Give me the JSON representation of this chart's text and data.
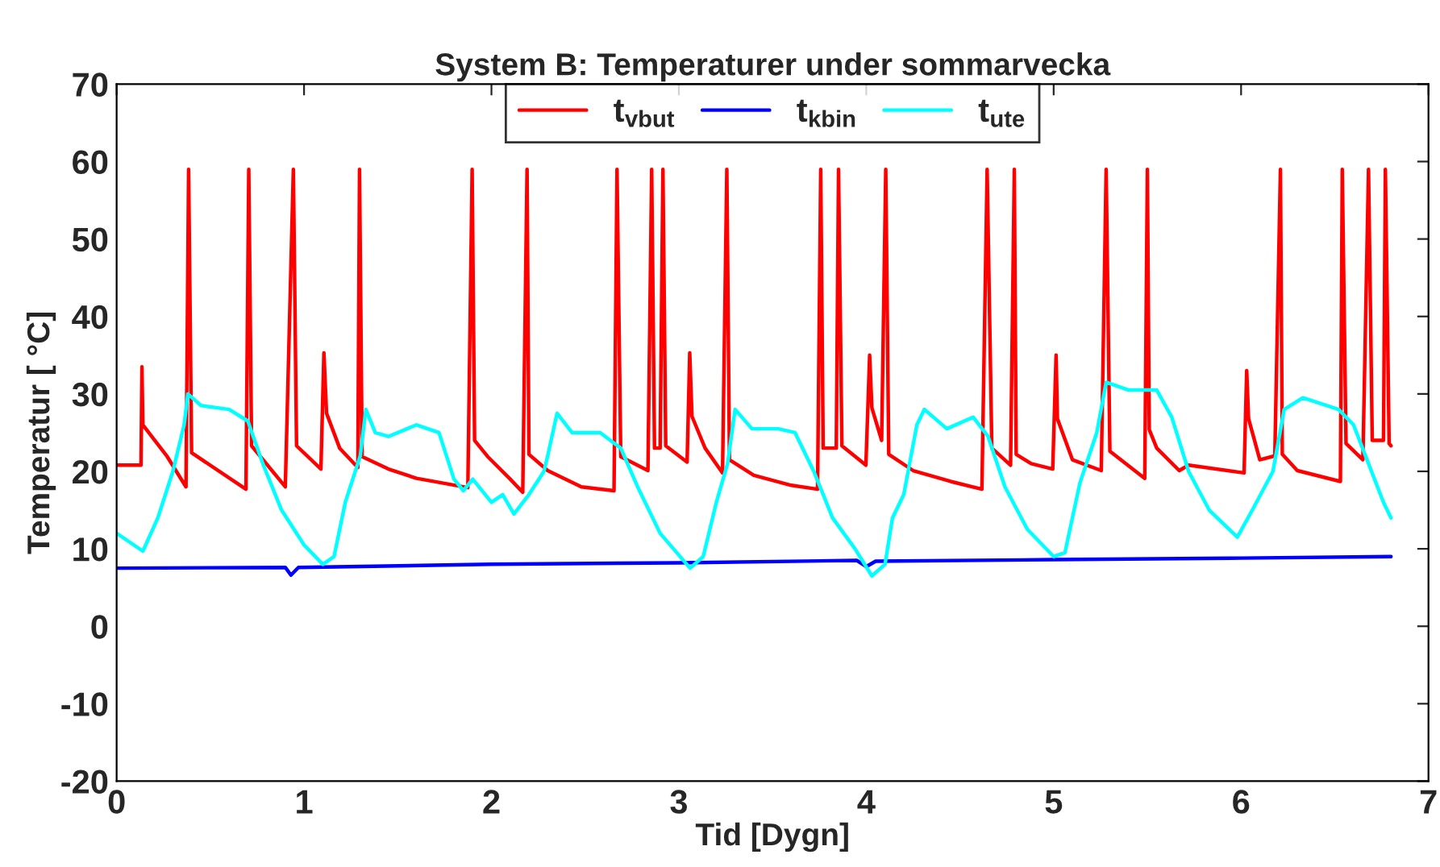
{
  "chart_data": {
    "type": "line",
    "title": "System B: Temperaturer under sommarvecka",
    "xlabel": "Tid [Dygn]",
    "ylabel": "Temperatur [ °C]",
    "xlim": [
      0,
      7
    ],
    "xticks": [
      0,
      1,
      2,
      3,
      4,
      5,
      6,
      7
    ],
    "ylim": [
      -20,
      70
    ],
    "yticks": [
      -20,
      -10,
      0,
      10,
      20,
      30,
      40,
      50,
      60,
      70
    ],
    "grid": false,
    "legend": "top",
    "marker": "none",
    "line_style": "solid",
    "series": [
      {
        "name": "t$_{vbut}$",
        "color": "#ff0000",
        "x": [
          0,
          0.13,
          0.135,
          0.14,
          0.27,
          0.37,
          0.384,
          0.4,
          0.69,
          0.705,
          0.72,
          0.9,
          0.943,
          0.96,
          1.09,
          1.106,
          1.12,
          1.19,
          1.287,
          1.296,
          1.31,
          1.45,
          1.6,
          1.874,
          1.897,
          1.91,
          1.98,
          2.1,
          2.167,
          2.19,
          2.2,
          2.3,
          2.48,
          2.654,
          2.67,
          2.69,
          2.835,
          2.855,
          2.87,
          2.9,
          2.915,
          2.93,
          3.044,
          3.058,
          3.07,
          3.14,
          3.233,
          3.256,
          3.27,
          3.4,
          3.6,
          3.74,
          3.757,
          3.77,
          3.84,
          3.852,
          3.87,
          3.998,
          4.018,
          4.03,
          4.082,
          4.104,
          4.12,
          4.25,
          4.45,
          4.617,
          4.645,
          4.67,
          4.77,
          4.79,
          4.8,
          4.88,
          4.995,
          5.013,
          5.02,
          5.1,
          5.254,
          5.28,
          5.3,
          5.486,
          5.5,
          5.51,
          5.55,
          5.67,
          5.72,
          6.016,
          6.03,
          6.04,
          6.1,
          6.18,
          6.21,
          6.22,
          6.3,
          6.53,
          6.54,
          6.56,
          6.65,
          6.68,
          6.7,
          6.76,
          6.77,
          6.79,
          6.8
        ],
        "values": [
          20.8,
          20.8,
          33.5,
          26,
          21.9,
          18,
          59,
          22.4,
          17.7,
          59,
          23.3,
          18,
          59,
          23.3,
          20.3,
          35.3,
          27.5,
          23,
          20.5,
          59,
          21.9,
          20.3,
          19.1,
          17.9,
          59,
          24,
          21.9,
          19,
          17.3,
          59,
          22.2,
          20.1,
          18,
          17.5,
          59,
          21.9,
          20.1,
          59,
          23,
          23,
          59,
          23.3,
          21.2,
          35.3,
          27.1,
          23,
          19.8,
          59,
          21.5,
          19.5,
          18.2,
          17.7,
          59,
          23,
          23,
          59,
          23.3,
          20.8,
          35,
          28.2,
          24,
          59,
          22.2,
          20.1,
          18.7,
          17.7,
          59,
          23,
          20.8,
          59,
          22.2,
          21,
          20.3,
          35,
          26.8,
          21.5,
          20.1,
          59,
          22.6,
          19.1,
          59,
          25.4,
          23,
          20.1,
          20.8,
          19.8,
          33,
          26.8,
          21.5,
          22,
          59,
          22.2,
          20.1,
          18.7,
          59,
          23.6,
          21.5,
          59,
          24,
          24,
          59,
          23.6,
          23.3
        ]
      },
      {
        "name": "t$_{kbin}$",
        "color": "#0000ff",
        "x": [
          0,
          0.9,
          0.93,
          0.97,
          2.0,
          3.0,
          3.95,
          4.0,
          4.05,
          5.0,
          6.0,
          6.8
        ],
        "values": [
          7.5,
          7.6,
          6.6,
          7.6,
          8.0,
          8.2,
          8.5,
          7.7,
          8.4,
          8.6,
          8.8,
          9.0
        ]
      },
      {
        "name": "t$_{ute}$",
        "color": "#00ffff",
        "x": [
          0,
          0.14,
          0.22,
          0.3,
          0.36,
          0.38,
          0.45,
          0.6,
          0.7,
          0.78,
          0.88,
          1.0,
          1.1,
          1.16,
          1.22,
          1.3,
          1.33,
          1.38,
          1.45,
          1.6,
          1.72,
          1.8,
          1.85,
          1.9,
          2.0,
          2.06,
          2.12,
          2.2,
          2.28,
          2.3,
          2.35,
          2.43,
          2.58,
          2.69,
          2.78,
          2.9,
          3.06,
          3.13,
          3.2,
          3.26,
          3.3,
          3.39,
          3.53,
          3.62,
          3.72,
          3.82,
          3.94,
          4.03,
          4.1,
          4.14,
          4.2,
          4.27,
          4.31,
          4.43,
          4.57,
          4.65,
          4.74,
          4.86,
          5.0,
          5.06,
          5.14,
          5.23,
          5.28,
          5.4,
          5.55,
          5.63,
          5.72,
          5.83,
          5.98,
          6.06,
          6.17,
          6.23,
          6.33,
          6.52,
          6.6,
          6.68,
          6.76,
          6.8
        ],
        "values": [
          12,
          9.7,
          14,
          20,
          26,
          30,
          28.5,
          28,
          26.5,
          21,
          15,
          10.5,
          8,
          9,
          16,
          22,
          28,
          25,
          24.5,
          26,
          25,
          19,
          17.5,
          19,
          16,
          17,
          14.5,
          17,
          20,
          22,
          27.5,
          25,
          25,
          23,
          18,
          12,
          7.5,
          9,
          16,
          21,
          28,
          25.5,
          25.5,
          25,
          20,
          14,
          10,
          6.5,
          8,
          14,
          17,
          26,
          28,
          25.5,
          27,
          24.5,
          18,
          12.5,
          9,
          9.5,
          18.5,
          25,
          31.5,
          30.5,
          30.5,
          27,
          20,
          15,
          11.5,
          15,
          20,
          28,
          29.5,
          28,
          26,
          21,
          16,
          14
        ]
      }
    ]
  }
}
